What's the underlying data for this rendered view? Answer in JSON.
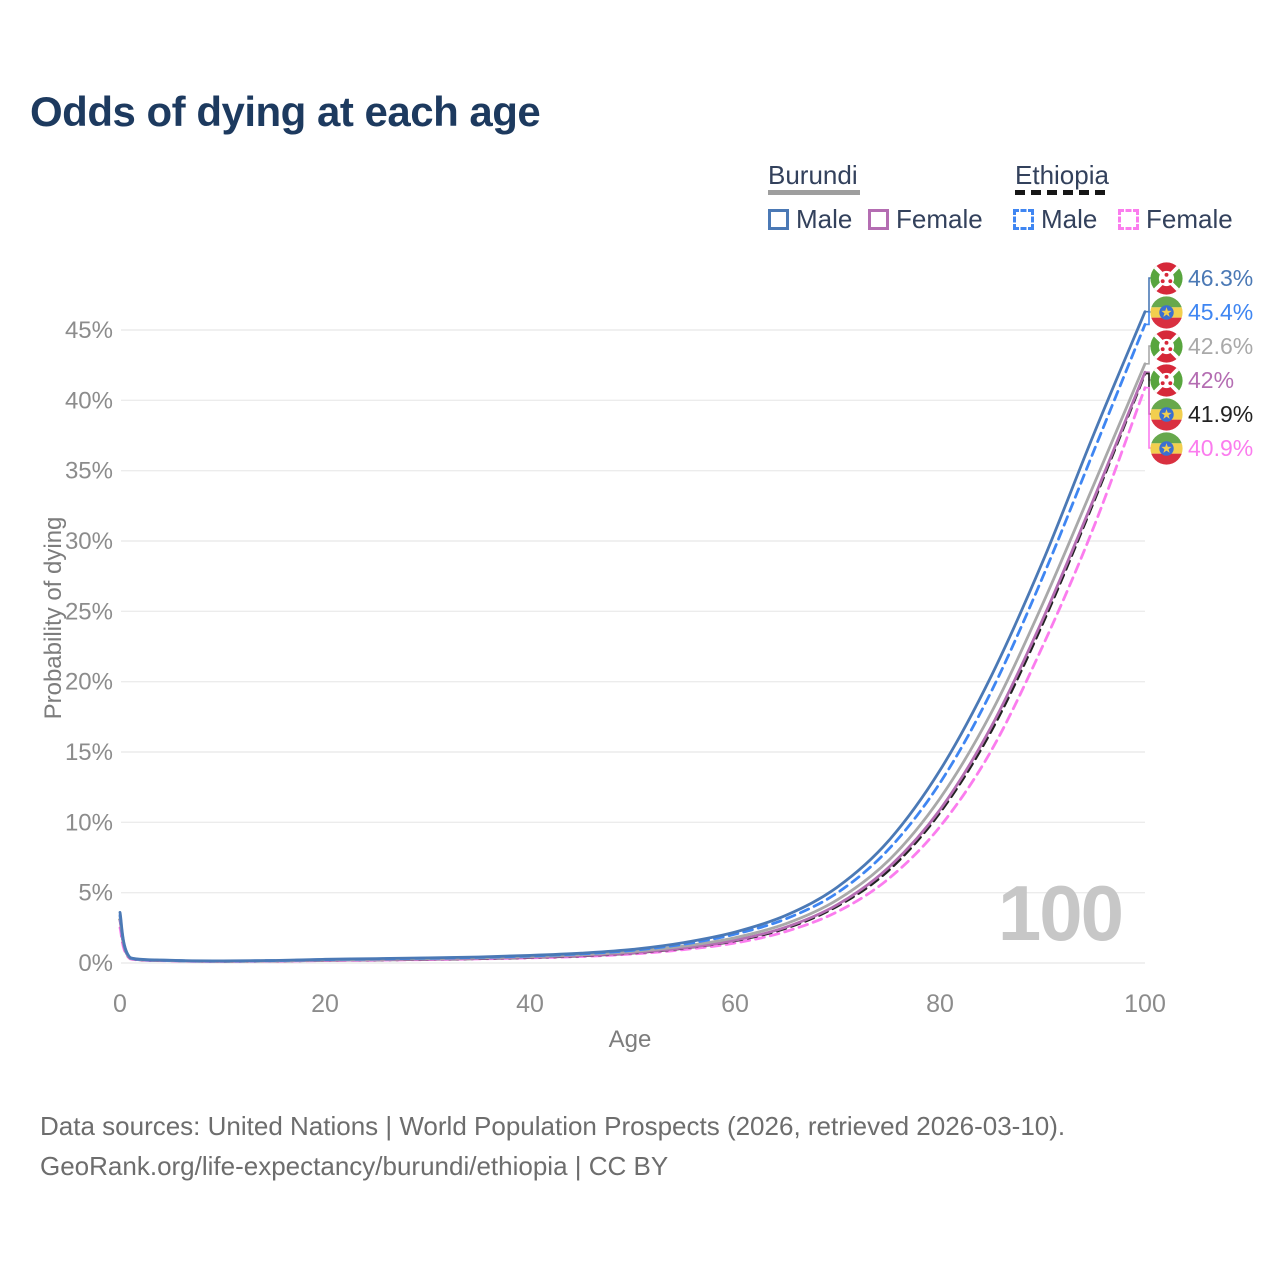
{
  "title": "Odds of dying at each age",
  "watermark": "100",
  "legend": {
    "groups": [
      {
        "label": "Burundi",
        "line_style": "solid",
        "line_color": "#9e9e9e",
        "items": [
          {
            "label": "Male",
            "swatch_color": "#4b79b5",
            "swatch_style": "solid"
          },
          {
            "label": "Female",
            "swatch_color": "#b46db2",
            "swatch_style": "solid"
          }
        ]
      },
      {
        "label": "Ethiopia",
        "line_style": "dashed",
        "line_color": "#161616",
        "items": [
          {
            "label": "Male",
            "swatch_color": "#3f86f2",
            "swatch_style": "dashed"
          },
          {
            "label": "Female",
            "swatch_color": "#fb7cee",
            "swatch_style": "dashed"
          }
        ]
      }
    ]
  },
  "chart_data": {
    "type": "line",
    "title": "Odds of dying at each age",
    "xlabel": "Age",
    "ylabel": "Probability of dying",
    "xlim": [
      0,
      100
    ],
    "ylim": [
      0,
      47
    ],
    "grid": "horizontal",
    "legend_position": "top-right",
    "xticks": [
      0,
      20,
      40,
      60,
      80,
      100
    ],
    "xtick_labels": [
      "0",
      "20",
      "40",
      "60",
      "80",
      "100"
    ],
    "yticks": [
      0,
      5,
      10,
      15,
      20,
      25,
      30,
      35,
      40,
      45
    ],
    "ytick_labels": [
      "0%",
      "5%",
      "10%",
      "15%",
      "20%",
      "25%",
      "30%",
      "35%",
      "40%",
      "45%"
    ],
    "x": [
      0,
      1,
      5,
      10,
      15,
      20,
      25,
      30,
      35,
      40,
      45,
      50,
      55,
      60,
      65,
      70,
      75,
      80,
      85,
      90,
      95,
      100
    ],
    "series": [
      {
        "name": "Burundi Male",
        "country": "Burundi",
        "color": "#4b79b5",
        "dash": "solid",
        "end_label": "46.3%",
        "values": [
          3.6,
          0.38,
          0.19,
          0.15,
          0.18,
          0.26,
          0.31,
          0.36,
          0.43,
          0.54,
          0.7,
          0.97,
          1.45,
          2.2,
          3.4,
          5.4,
          8.7,
          13.7,
          20.4,
          28.5,
          37.6,
          46.3
        ]
      },
      {
        "name": "Ethiopia Male",
        "country": "Ethiopia",
        "color": "#3f86f2",
        "dash": "dashed",
        "end_label": "45.4%",
        "values": [
          3.4,
          0.36,
          0.18,
          0.14,
          0.17,
          0.24,
          0.29,
          0.34,
          0.4,
          0.5,
          0.65,
          0.9,
          1.34,
          2.05,
          3.15,
          5.0,
          8.1,
          12.8,
          19.3,
          27.4,
          36.4,
          45.4
        ]
      },
      {
        "name": "Burundi Both sexes",
        "country": "Burundi",
        "color": "#a9a9a9",
        "dash": "solid",
        "end_label": "42.6%",
        "values": [
          3.3,
          0.35,
          0.18,
          0.13,
          0.16,
          0.22,
          0.26,
          0.31,
          0.37,
          0.46,
          0.6,
          0.82,
          1.2,
          1.8,
          2.8,
          4.5,
          7.3,
          11.7,
          17.8,
          25.5,
          34.0,
          42.6
        ]
      },
      {
        "name": "Burundi Female",
        "country": "Burundi",
        "color": "#b46db2",
        "dash": "solid",
        "end_label": "42%",
        "values": [
          3.0,
          0.32,
          0.16,
          0.12,
          0.14,
          0.19,
          0.23,
          0.27,
          0.33,
          0.41,
          0.53,
          0.73,
          1.07,
          1.62,
          2.55,
          4.15,
          6.8,
          10.9,
          16.8,
          24.4,
          33.0,
          42.0
        ]
      },
      {
        "name": "Ethiopia Both sexes",
        "country": "Ethiopia",
        "color": "#222222",
        "dash": "dashed",
        "end_label": "41.9%",
        "values": [
          3.1,
          0.33,
          0.17,
          0.12,
          0.14,
          0.19,
          0.22,
          0.26,
          0.31,
          0.39,
          0.51,
          0.71,
          1.05,
          1.58,
          2.48,
          4.05,
          6.6,
          10.7,
          16.5,
          24.1,
          32.8,
          41.9
        ]
      },
      {
        "name": "Ethiopia Female",
        "country": "Ethiopia",
        "color": "#fb7cee",
        "dash": "dashed",
        "end_label": "40.9%",
        "values": [
          2.5,
          0.29,
          0.15,
          0.11,
          0.13,
          0.17,
          0.2,
          0.24,
          0.29,
          0.36,
          0.46,
          0.64,
          0.95,
          1.42,
          2.25,
          3.65,
          6.0,
          9.7,
          15.1,
          22.5,
          31.0,
          40.9
        ]
      }
    ]
  },
  "footer": {
    "line1": "Data sources: United Nations | World Population Prospects (2026, retrieved 2026-03-10).",
    "line2": "GeoRank.org/life-expectancy/burundi/ethiopia | CC BY"
  }
}
